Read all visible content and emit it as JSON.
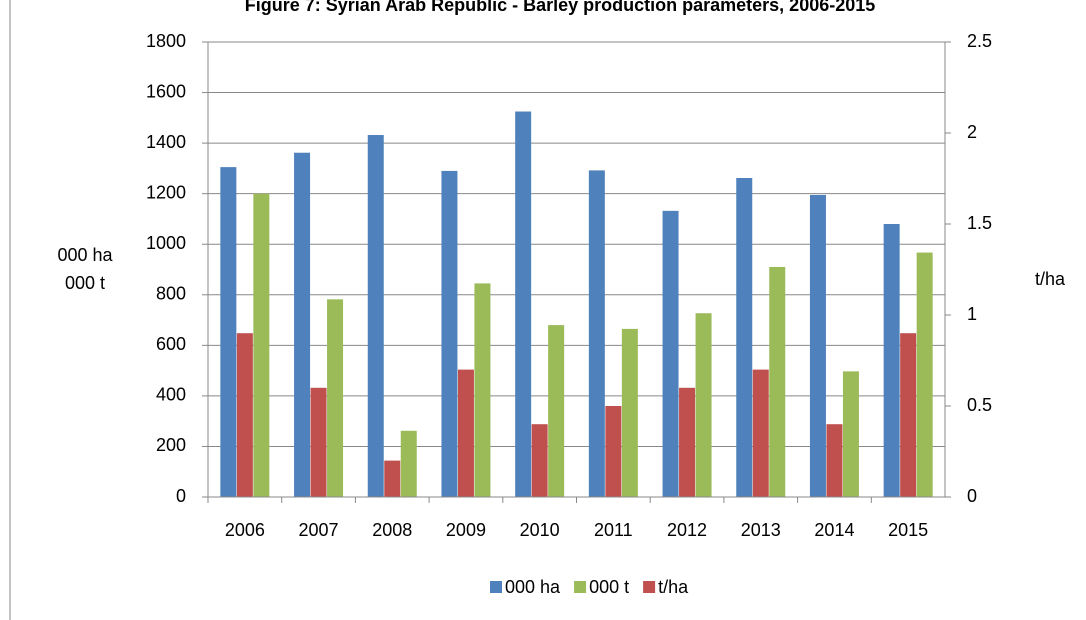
{
  "chart_data": {
    "type": "bar",
    "title": "Figure 7: Syrian Arab Republic - Barley production parameters, 2006-2015",
    "ylabel": [
      "000 ha",
      "000 t"
    ],
    "y2label": "t/ha",
    "categories": [
      "2006",
      "2007",
      "2008",
      "2009",
      "2010",
      "2011",
      "2012",
      "2013",
      "2014",
      "2015"
    ],
    "series": [
      {
        "name": "000 ha",
        "color": "#4f81bd",
        "values": [
          1305,
          1362,
          1432,
          1290,
          1525,
          1292,
          1132,
          1262,
          1195,
          1080
        ]
      },
      {
        "name": "000 t",
        "color": "#9bbb59",
        "values": [
          1200,
          782,
          262,
          845,
          680,
          665,
          727,
          910,
          497,
          967
        ]
      },
      {
        "name": "t/ha",
        "color": "#c0504d",
        "axis": "y2",
        "values": [
          0.9,
          0.6,
          0.2,
          0.7,
          0.4,
          0.5,
          0.6,
          0.7,
          0.4,
          0.9
        ]
      }
    ],
    "ylim": [
      0,
      1800
    ],
    "yticks": [
      0,
      200,
      400,
      600,
      800,
      1000,
      1200,
      1400,
      1600,
      1800
    ],
    "y2lim": [
      0,
      2.5
    ],
    "y2ticks": [
      0,
      0.5,
      1,
      1.5,
      2,
      2.5
    ],
    "grid": true,
    "legend": "bottom"
  }
}
